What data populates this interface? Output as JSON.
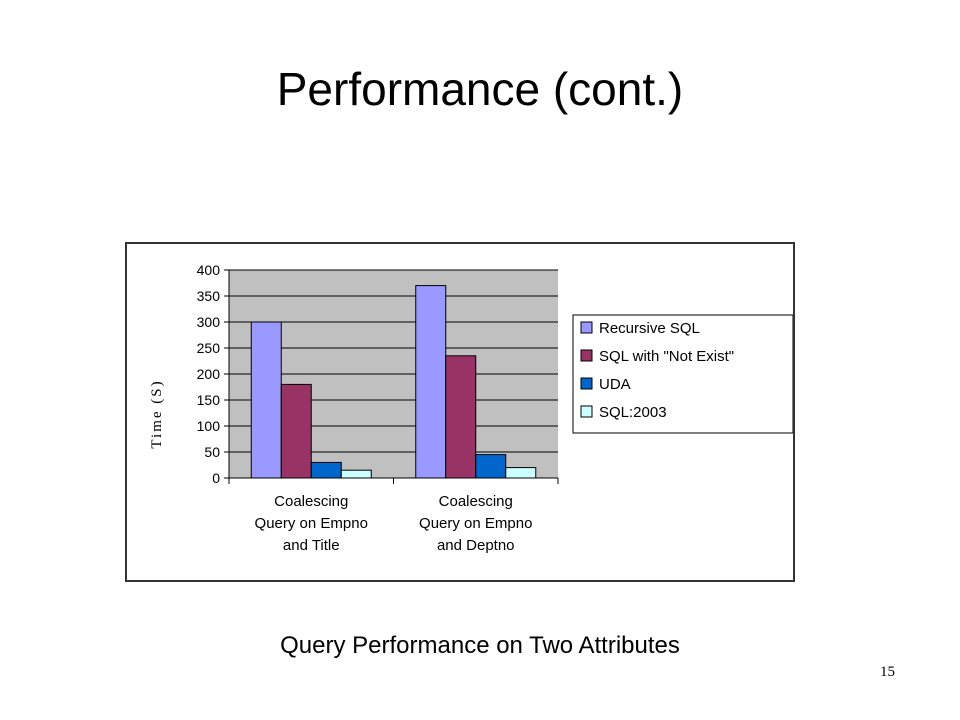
{
  "slide": {
    "title": "Performance (cont.)",
    "caption": "Query Performance on Two Attributes",
    "page_number": "15"
  },
  "chart_data": {
    "type": "bar",
    "title": "",
    "xlabel": "",
    "ylabel": "Time (S)",
    "ylim": [
      0,
      400
    ],
    "yticks": [
      0,
      50,
      100,
      150,
      200,
      250,
      300,
      350,
      400
    ],
    "grid": true,
    "legend_position": "right",
    "categories": [
      [
        "Coalescing",
        "Query on Empno",
        "and Title"
      ],
      [
        "Coalescing",
        "Query on Empno",
        "and Deptno"
      ]
    ],
    "series": [
      {
        "name": "Recursive SQL",
        "color": "#9999ff",
        "values": [
          300,
          370
        ]
      },
      {
        "name": "SQL with \"Not Exist\"",
        "color": "#993366",
        "values": [
          180,
          235
        ]
      },
      {
        "name": "UDA",
        "color": "#0066cc",
        "values": [
          30,
          45
        ]
      },
      {
        "name": "SQL:2003",
        "color": "#ccffff",
        "values": [
          15,
          20
        ]
      }
    ],
    "plot_background": "#c0c0c0"
  }
}
